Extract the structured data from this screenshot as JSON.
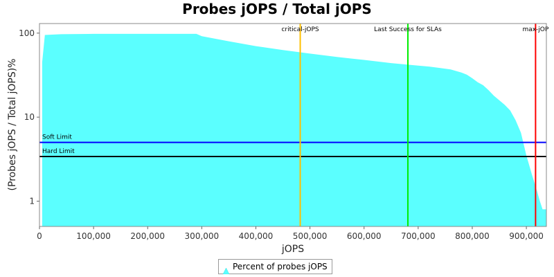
{
  "chart_data": {
    "type": "area",
    "title": "Probes jOPS / Total jOPS",
    "xlabel": "jOPS",
    "ylabel": "(Probes jOPS / Total jOPS)%",
    "y_scale": "log",
    "xlim": [
      0,
      937000
    ],
    "ylim": [
      0.5,
      130
    ],
    "x_ticks": [
      0,
      100000,
      200000,
      300000,
      400000,
      500000,
      600000,
      700000,
      800000,
      900000
    ],
    "x_tick_labels": [
      "0",
      "100,000",
      "200,000",
      "300,000",
      "400,000",
      "500,000",
      "600,000",
      "700,000",
      "800,000",
      "900,000"
    ],
    "y_ticks": [
      1,
      10,
      100
    ],
    "y_tick_labels": [
      "1",
      "10",
      "100"
    ],
    "grid": false,
    "legend_position": "bottom",
    "series": [
      {
        "name": "Percent of probes jOPS",
        "color": "#5bffff",
        "x": [
          5000,
          10000,
          40000,
          100000,
          200000,
          290000,
          300000,
          350000,
          400000,
          450000,
          500000,
          550000,
          600000,
          650000,
          700000,
          720000,
          760000,
          780000,
          790000,
          800000,
          810000,
          820000,
          830000,
          840000,
          860000,
          870000,
          880000,
          890000,
          900000,
          910000,
          920000,
          925000,
          930000,
          937000
        ],
        "values": [
          45,
          95,
          97,
          98,
          98,
          98,
          92,
          80,
          70,
          63,
          57,
          52,
          48,
          44,
          41,
          40,
          37,
          34,
          32,
          29,
          26,
          24,
          21,
          18,
          14,
          12,
          9.2,
          6.5,
          3.5,
          2.1,
          1.3,
          1.0,
          0.8,
          0.8
        ]
      }
    ],
    "horizontal_lines": [
      {
        "label": "Soft Limit",
        "y": 5,
        "color": "#0000ff"
      },
      {
        "label": "Hard Limit",
        "y": 3.4,
        "color": "#000000"
      }
    ],
    "vertical_lines": [
      {
        "label": "critical-jOPS",
        "x": 482000,
        "color": "#ffc000"
      },
      {
        "label": "Last Success for SLAs",
        "x": 681000,
        "color": "#00ee00"
      },
      {
        "label": "max-jOP",
        "x": 917000,
        "color": "#ff0000"
      }
    ]
  }
}
